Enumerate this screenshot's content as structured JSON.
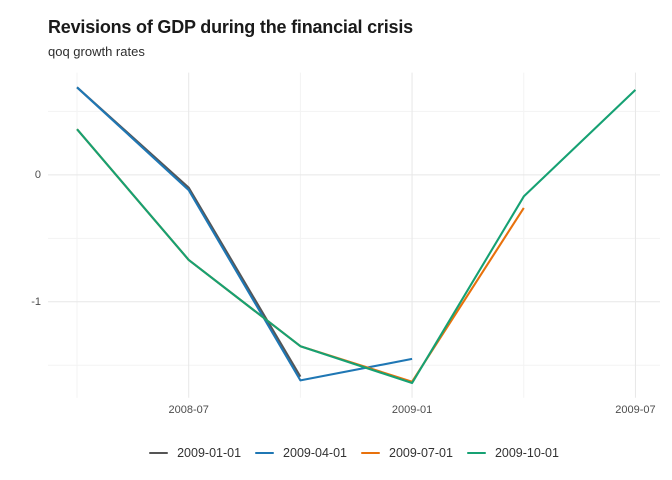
{
  "header": {
    "title": "Revisions of GDP during the financial crisis",
    "subtitle": "qoq growth rates"
  },
  "chart_data": {
    "type": "line",
    "title": "Revisions of GDP during the financial crisis",
    "subtitle": "qoq growth rates",
    "x_unit": "months since 2008-04 (quarter start dates)",
    "series": [
      {
        "name": "2009-01-01",
        "color": "#555555",
        "x_dates": [
          "2008-04",
          "2008-07",
          "2008-10"
        ],
        "x": [
          0,
          3,
          6
        ],
        "values": [
          0.69,
          -0.1,
          -1.59
        ]
      },
      {
        "name": "2009-04-01",
        "color": "#1f77b4",
        "x_dates": [
          "2008-04",
          "2008-07",
          "2008-10",
          "2009-01"
        ],
        "x": [
          0,
          3,
          6,
          9
        ],
        "values": [
          0.69,
          -0.12,
          -1.62,
          -1.45
        ]
      },
      {
        "name": "2009-07-01",
        "color": "#e8710c",
        "x_dates": [
          "2008-04",
          "2008-07",
          "2008-10",
          "2009-01",
          "2009-04"
        ],
        "x": [
          0,
          3,
          6,
          9,
          12
        ],
        "values": [
          0.36,
          -0.67,
          -1.35,
          -1.63,
          -0.26
        ]
      },
      {
        "name": "2009-10-01",
        "color": "#16a173",
        "x_dates": [
          "2008-04",
          "2008-07",
          "2008-10",
          "2009-01",
          "2009-04",
          "2009-07"
        ],
        "x": [
          0,
          3,
          6,
          9,
          12,
          15
        ],
        "values": [
          0.36,
          -0.67,
          -1.35,
          -1.64,
          -0.17,
          0.67
        ]
      }
    ],
    "x_ticks": [
      {
        "pos": 3,
        "label": "2008-07"
      },
      {
        "pos": 9,
        "label": "2009-01"
      },
      {
        "pos": 15,
        "label": "2009-07"
      }
    ],
    "x_minor_ticks": [
      0,
      6,
      12
    ],
    "y_ticks": [
      {
        "pos": 0,
        "label": "0"
      },
      {
        "pos": -1,
        "label": "-1"
      }
    ],
    "y_minor_ticks": [
      0.5,
      -0.5,
      -1.5
    ],
    "xlim": [
      -0.78,
      15.66
    ],
    "ylim": [
      -1.756,
      0.806
    ],
    "grid": true,
    "axis_lines": false,
    "legend_position": "bottom",
    "colors": {
      "background": "#ffffff",
      "grid_major": "#e7e7e7",
      "grid_minor": "#f3f3f3",
      "tick_label": "#4d4d4d",
      "legend_label": "#333333",
      "title": "#1a1a1a",
      "subtitle": "#2e2e2e"
    }
  }
}
